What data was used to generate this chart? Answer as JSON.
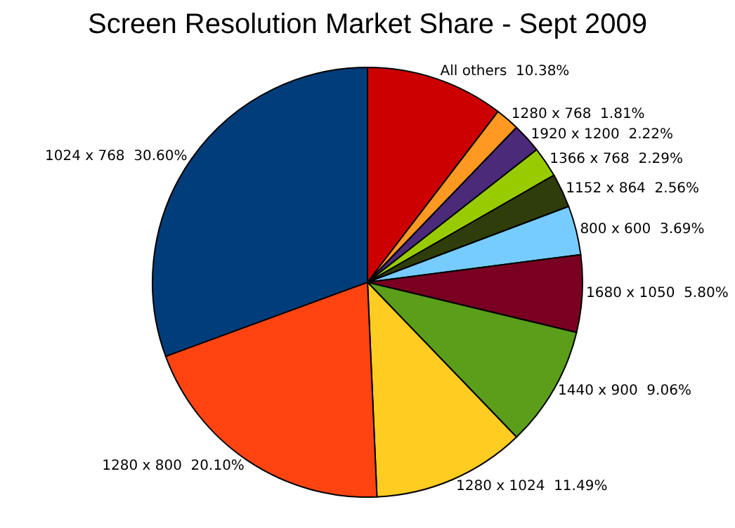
{
  "chart_data": {
    "type": "pie",
    "title": "Screen Resolution Market Share - Sept 2009",
    "categories": [
      "All others",
      "1280 x 768",
      "1920 x 1200",
      "1366 x 768",
      "1152 x 864",
      "800 x 600",
      "1680 x 1050",
      "1440 x 900",
      "1280 x 1024",
      "1280 x 800",
      "1024 x 768"
    ],
    "values": [
      10.38,
      1.81,
      2.22,
      2.29,
      2.56,
      3.69,
      5.8,
      9.06,
      11.49,
      20.1,
      30.6
    ],
    "value_labels": [
      "10.38%",
      "1.81%",
      "2.22%",
      "2.29%",
      "2.56%",
      "3.69%",
      "5.80%",
      "9.06%",
      "11.49%",
      "20.10%",
      "30.60%"
    ],
    "colors": [
      "#cc0000",
      "#ff9922",
      "#4b2a7a",
      "#99cc00",
      "#2e3d0a",
      "#77ccff",
      "#7a0022",
      "#5a9e1a",
      "#ffcc22",
      "#ff4411",
      "#003d7a"
    ],
    "legend": false
  }
}
